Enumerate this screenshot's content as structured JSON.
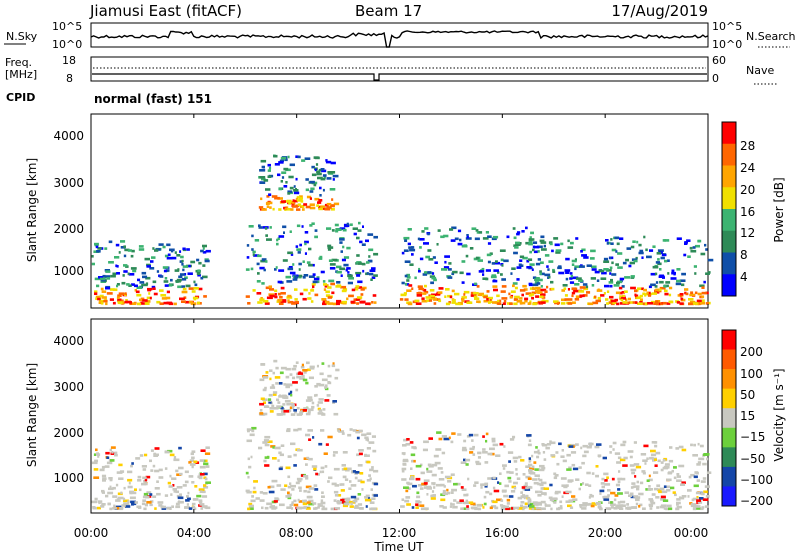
{
  "header": {
    "station": "Jiamusi East (fitACF)",
    "beam": "Beam 17",
    "date": "17/Aug/2019"
  },
  "top_panel": {
    "left_label": "N.Sky",
    "left_ticks": [
      "10^5",
      "10^0"
    ],
    "right_label": "N.Search",
    "right_ticks": [
      "10^5",
      "10^0"
    ]
  },
  "freq_panel": {
    "left_label_1": "Freq.",
    "left_label_2": "[MHz]",
    "left_ticks": [
      "18",
      "8"
    ],
    "right_label": "Nave",
    "right_ticks": [
      "60",
      "0"
    ]
  },
  "cpid": {
    "label": "CPID",
    "value": "normal (fast) 151"
  },
  "x_axis": {
    "ticks": [
      "00:00",
      "04:00",
      "08:00",
      "12:00",
      "16:00",
      "20:00",
      "00:00"
    ],
    "label": "Time UT"
  },
  "power_panel": {
    "ylabel": "Slant Range [km]",
    "yticks": [
      "4000",
      "3000",
      "2000",
      "1000"
    ],
    "colorbar_label": "Power [dB]",
    "colorbar_ticks": [
      "28",
      "24",
      "20",
      "16",
      "12",
      "8",
      "4"
    ],
    "colors": [
      "#0000ff",
      "#0f4fa8",
      "#2e8a57",
      "#3cb371",
      "#f0e000",
      "#ffa500",
      "#ff6600",
      "#ff0000"
    ]
  },
  "velocity_panel": {
    "ylabel": "Slant Range [km]",
    "yticks": [
      "4000",
      "3000",
      "2000",
      "1000"
    ],
    "colorbar_label": "Velocity [m s⁻¹]",
    "colorbar_ticks": [
      "200",
      "100",
      "50",
      "15",
      "−15",
      "−50",
      "−100",
      "−200"
    ],
    "colors": [
      "#1a1aff",
      "#1446a8",
      "#2e8a57",
      "#6cd03c",
      "#c8c8c0",
      "#ffd000",
      "#ff9000",
      "#ff5a00",
      "#ff0000"
    ]
  },
  "chart_data": {
    "type": "heatmap",
    "title": "Jiamusi East (fitACF) Beam 17 17/Aug/2019",
    "xlabel": "Time UT",
    "ylabel": "Slant Range [km]",
    "xlim": [
      "00:00",
      "24:00"
    ],
    "ylim": [
      180,
      4500
    ],
    "panels": [
      "Power [dB]",
      "Velocity [m s^-1]"
    ],
    "power_colorbar_range": [
      0,
      30
    ],
    "velocity_colorbar_range": [
      -250,
      250
    ],
    "data_gap_utc": "11:25",
    "approx_echo_regions": [
      {
        "t_start": "00:00",
        "t_end": "04:30",
        "range_km": [
          300,
          1700
        ],
        "peak_power_db": 28
      },
      {
        "t_start": "06:30",
        "t_end": "09:30",
        "range_km": [
          2400,
          3600
        ],
        "peak_power_db": 16
      },
      {
        "t_start": "06:00",
        "t_end": "11:00",
        "range_km": [
          300,
          2100
        ],
        "peak_power_db": 28
      },
      {
        "t_start": "12:00",
        "t_end": "17:30",
        "range_km": [
          300,
          2000
        ],
        "peak_power_db": 24
      },
      {
        "t_start": "17:00",
        "t_end": "24:00",
        "range_km": [
          300,
          1800
        ],
        "peak_power_db": 30
      }
    ]
  }
}
